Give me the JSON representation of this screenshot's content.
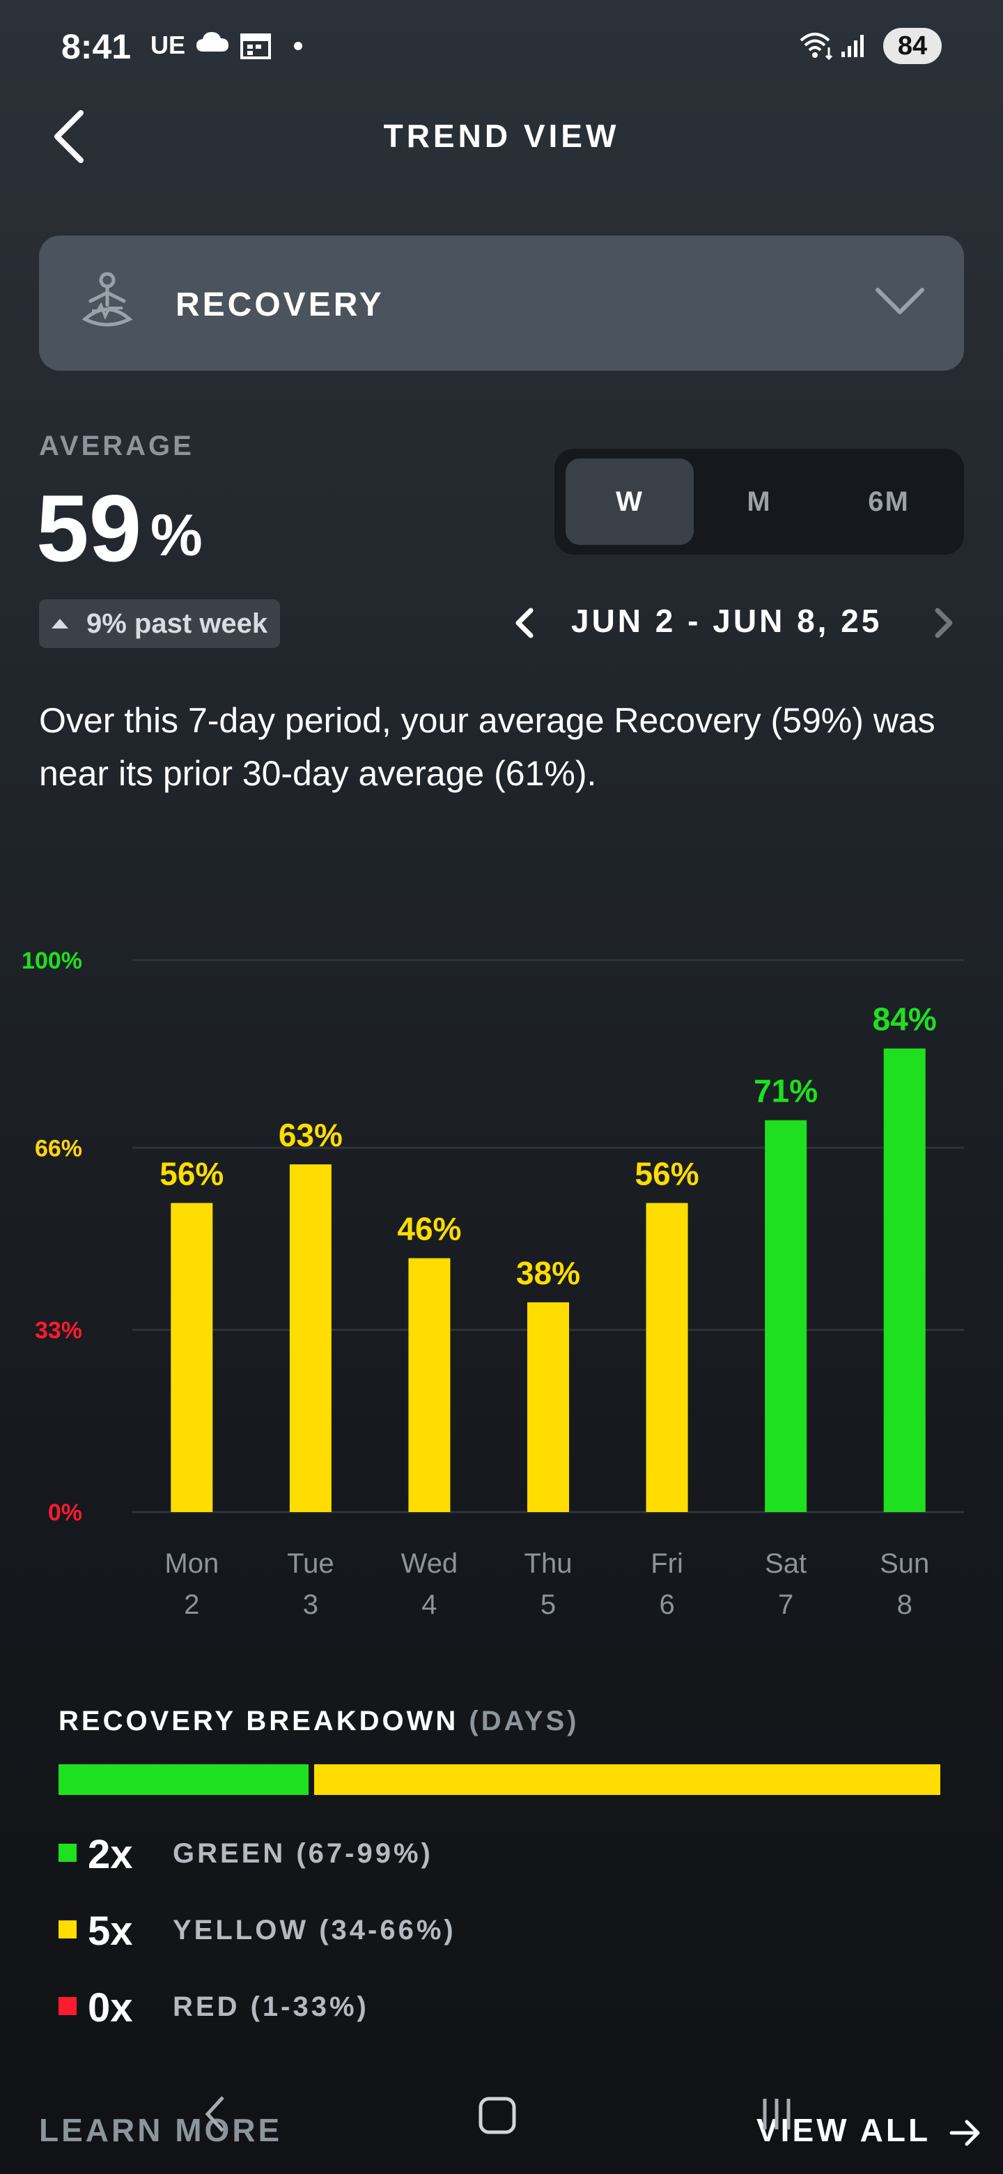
{
  "status_bar": {
    "time": "8:41",
    "carrier": "UE",
    "battery": "84"
  },
  "header": {
    "title": "TREND VIEW"
  },
  "metric_selector": {
    "label": "RECOVERY"
  },
  "average": {
    "label": "AVERAGE",
    "value": "59",
    "unit": "%",
    "delta": "9% past week"
  },
  "period_toggle": {
    "options": [
      "W",
      "M",
      "6M"
    ],
    "selected": "W"
  },
  "date_range": "JUN 2 - JUN 8, 25",
  "summary": "Over this 7-day period, your average Recovery (59%) was near its prior 30-day average (61%).",
  "chart_data": {
    "type": "bar",
    "categories": [
      "Mon 2",
      "Tue 3",
      "Wed 4",
      "Thu 5",
      "Fri 6",
      "Sat 7",
      "Sun 8"
    ],
    "day_names": [
      "Mon",
      "Tue",
      "Wed",
      "Thu",
      "Fri",
      "Sat",
      "Sun"
    ],
    "day_numbers": [
      "2",
      "3",
      "4",
      "5",
      "6",
      "7",
      "8"
    ],
    "values": [
      56,
      63,
      46,
      38,
      56,
      71,
      84
    ],
    "value_labels": [
      "56%",
      "63%",
      "46%",
      "38%",
      "56%",
      "71%",
      "84%"
    ],
    "ylim": [
      0,
      100
    ],
    "y_ticks": [
      {
        "value": 100,
        "label": "100%",
        "color": "#1fe01f"
      },
      {
        "value": 66,
        "label": "66%",
        "color": "#ffd60a"
      },
      {
        "value": 33,
        "label": "33%",
        "color": "#ff1a2e"
      },
      {
        "value": 0,
        "label": "0%",
        "color": "#ff1a2e"
      }
    ],
    "colors": {
      "green": "#1fe01f",
      "yellow": "#ffdd00",
      "red": "#ff1a2e"
    },
    "grid": true
  },
  "breakdown": {
    "title": "RECOVERY BREAKDOWN",
    "subtitle": "(DAYS)",
    "green_days": 2,
    "yellow_days": 5,
    "red_days": 0,
    "items": [
      {
        "count": "2x",
        "label": "GREEN (67-99%)",
        "color": "#1fe01f"
      },
      {
        "count": "5x",
        "label": "YELLOW (34-66%)",
        "color": "#ffdd00"
      },
      {
        "count": "0x",
        "label": "RED (1-33%)",
        "color": "#ff1a2e"
      }
    ]
  },
  "footer": {
    "learn_more": "LEARN MORE",
    "view_all": "VIEW ALL"
  }
}
